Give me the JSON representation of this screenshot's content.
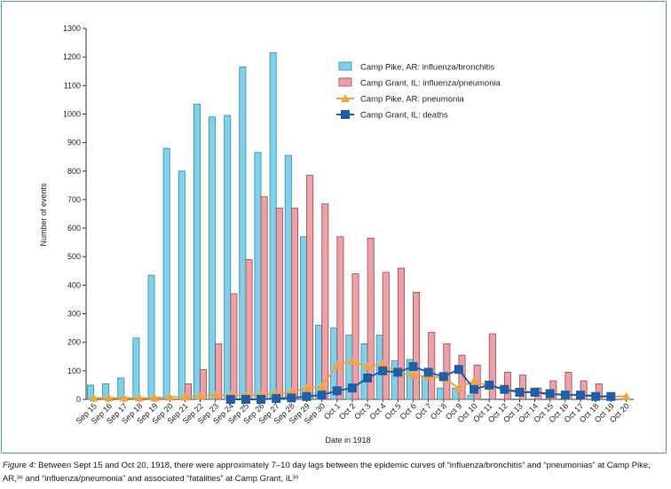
{
  "chart_data": {
    "type": "bar",
    "xlabel": "Date in 1918",
    "ylabel": "Number of events",
    "ylim": [
      0,
      1300
    ],
    "yticks": [
      0,
      100,
      200,
      300,
      400,
      500,
      600,
      700,
      800,
      900,
      1000,
      1100,
      1200,
      1300
    ],
    "grid": false,
    "legend_position": "top-right",
    "categories": [
      "Sep 15",
      "Sep 16",
      "Sep 17",
      "Sep 18",
      "Sep 19",
      "Sep 20",
      "Sep 21",
      "Sep 22",
      "Sep 23",
      "Sep 24",
      "Sep 25",
      "Sep 26",
      "Sep 27",
      "Sep 28",
      "Sep 29",
      "Sep 30",
      "Oct 1",
      "Oct 2",
      "Oct 3",
      "Oct 4",
      "Oct 5",
      "Oct 6",
      "Oct 7",
      "Oct 8",
      "Oct 9",
      "Oct 10",
      "Oct 11",
      "Oct 12",
      "Oct 13",
      "Oct 14",
      "Oct 15",
      "Oct 16",
      "Oct 17",
      "Oct 18",
      "Oct 19",
      "Oct 20"
    ],
    "series": [
      {
        "name": "Camp Pike, AR: influenza/bronchitis",
        "kind": "bar",
        "color": "#7fd0e8",
        "values": [
          50,
          55,
          75,
          215,
          435,
          880,
          800,
          1035,
          990,
          995,
          1165,
          865,
          1215,
          855,
          570,
          260,
          250,
          225,
          195,
          225,
          135,
          140,
          80,
          40,
          40,
          15,
          0,
          0,
          0,
          0,
          0,
          0,
          0,
          0,
          0,
          0
        ]
      },
      {
        "name": "Camp Grant, IL: influenza/pneumonia",
        "kind": "bar",
        "color": "#e8a3a8",
        "values": [
          0,
          0,
          0,
          0,
          0,
          0,
          55,
          105,
          195,
          370,
          490,
          710,
          670,
          670,
          785,
          685,
          570,
          440,
          565,
          445,
          460,
          375,
          235,
          195,
          155,
          120,
          230,
          95,
          85,
          40,
          65,
          95,
          65,
          55,
          0,
          0
        ]
      },
      {
        "name": "Camp Pike, AR: pneumonia",
        "kind": "line",
        "color": "#f2a33a",
        "values": [
          5,
          5,
          5,
          5,
          5,
          8,
          8,
          12,
          15,
          15,
          15,
          18,
          20,
          25,
          40,
          45,
          120,
          135,
          115,
          125,
          95,
          85,
          80,
          75,
          40,
          65,
          45,
          35,
          30,
          25,
          15,
          20,
          15,
          15,
          10,
          10
        ]
      },
      {
        "name": "Camp Grant, IL: deaths",
        "kind": "line",
        "color": "#1f5fa8",
        "values": [
          null,
          null,
          null,
          null,
          null,
          null,
          null,
          null,
          null,
          0,
          0,
          0,
          3,
          5,
          10,
          15,
          30,
          40,
          75,
          100,
          95,
          115,
          95,
          80,
          105,
          35,
          50,
          35,
          25,
          25,
          20,
          15,
          15,
          10,
          10,
          null
        ]
      }
    ]
  },
  "caption": {
    "label": "Figure 4:",
    "text": " Between Sept 15 and Oct 20, 1918, there were approximately 7–10 day lags between the epidemic curves of “influenza/bronchitis” and “pneumonias” at Camp Pike, AR,³⁸ and “influenza/pneumonia” and associated “fatalities” at Camp Grant, IL³⁹"
  },
  "colors": {
    "frame": "#5aa590",
    "axis": "#333333",
    "bar_stroke_blue": "#2a8fb0",
    "bar_stroke_red": "#b04050"
  }
}
